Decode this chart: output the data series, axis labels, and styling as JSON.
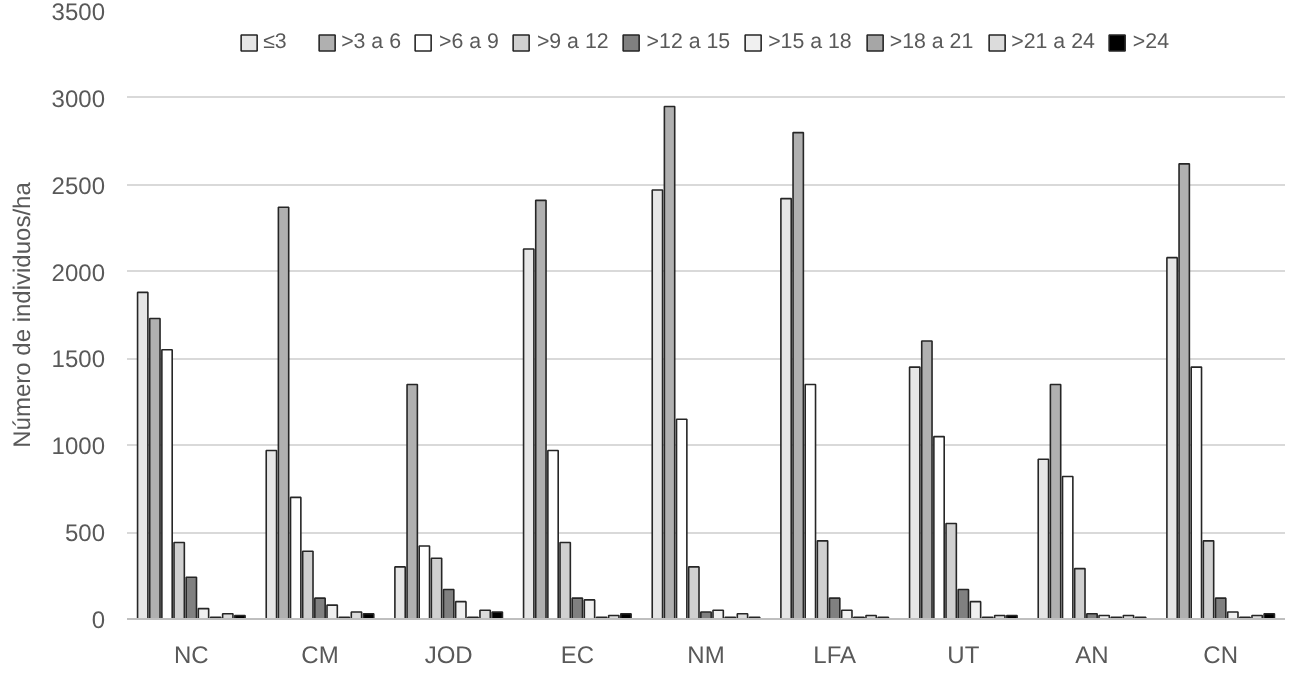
{
  "chart_data": {
    "type": "bar",
    "ylabel": "Número de individuos/ha",
    "categories": [
      "NC",
      "CM",
      "JOD",
      "EC",
      "NM",
      "LFA",
      "UT",
      "AN",
      "CN"
    ],
    "series": [
      {
        "name": "≤3",
        "color": "#e6e6e6",
        "values": [
          1880,
          970,
          300,
          2130,
          2470,
          2420,
          1450,
          920,
          2080
        ]
      },
      {
        "name": ">3 a 6",
        "color": "#b0b0b0",
        "values": [
          1730,
          2370,
          1350,
          2410,
          2950,
          2800,
          1600,
          1350,
          2620
        ]
      },
      {
        "name": ">6 a 9",
        "color": "#ffffff",
        "values": [
          1550,
          700,
          420,
          970,
          1150,
          1350,
          1050,
          820,
          1450
        ]
      },
      {
        "name": ">9 a 12",
        "color": "#d0d0d0",
        "values": [
          440,
          390,
          350,
          440,
          300,
          450,
          550,
          290,
          450
        ]
      },
      {
        "name": ">12 a 15",
        "color": "#808080",
        "values": [
          240,
          120,
          170,
          120,
          40,
          120,
          170,
          30,
          120
        ]
      },
      {
        "name": ">15 a 18",
        "color": "#f0f0f0",
        "values": [
          60,
          80,
          100,
          110,
          50,
          50,
          100,
          20,
          40
        ]
      },
      {
        "name": ">18 a 21",
        "color": "#a6a6a6",
        "values": [
          10,
          10,
          10,
          10,
          10,
          10,
          10,
          10,
          10
        ]
      },
      {
        "name": ">21 a 24",
        "color": "#dcdcdc",
        "values": [
          30,
          40,
          50,
          20,
          30,
          20,
          20,
          20,
          20
        ]
      },
      {
        "name": ">24",
        "color": "#000000",
        "values": [
          20,
          30,
          40,
          30,
          10,
          10,
          20,
          10,
          30
        ]
      }
    ],
    "ylim": [
      0,
      3500
    ],
    "yticks": [
      0,
      500,
      1000,
      1500,
      2000,
      2500,
      3000,
      3500
    ],
    "grid": "y",
    "legend": "top"
  }
}
